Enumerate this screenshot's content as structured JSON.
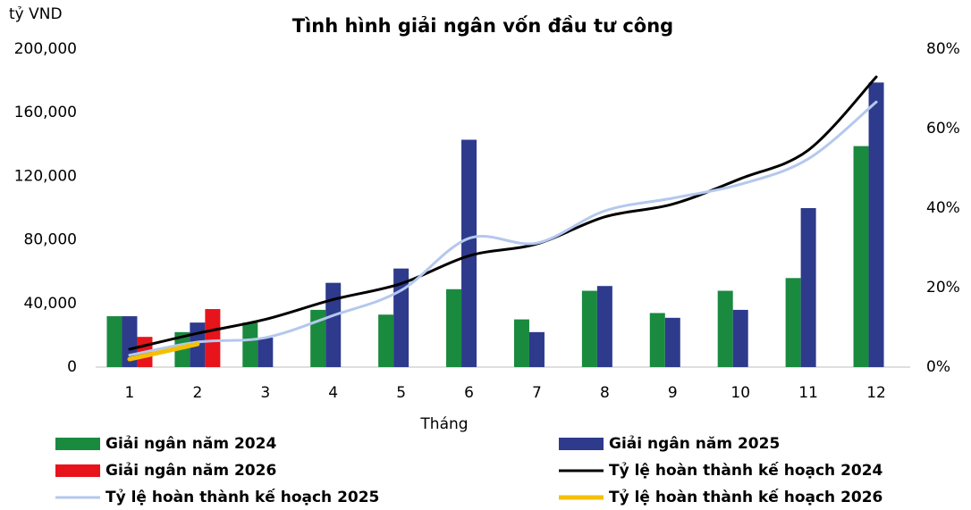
{
  "chart_data": {
    "type": "bar-line",
    "title": "Tình hình giải ngân vốn đầu tư công",
    "y_label": "tỷ VND",
    "x_label": "Tháng",
    "categories": [
      "1",
      "2",
      "3",
      "4",
      "5",
      "6",
      "7",
      "8",
      "9",
      "10",
      "11",
      "12"
    ],
    "ylim": [
      0,
      200000
    ],
    "yticks": [
      0,
      {
        "value": 40000,
        "label": "40,000"
      },
      {
        "value": 80000,
        "label": "80,000"
      },
      {
        "value": 120000,
        "label": "120,000"
      },
      {
        "value": 160000,
        "label": "160,000"
      },
      {
        "value": 200000,
        "label": "200,000"
      }
    ],
    "y2lim": [
      0,
      80
    ],
    "y2ticks": [
      {
        "value": 0,
        "label": "0%"
      },
      {
        "value": 20,
        "label": "20%"
      },
      {
        "value": 40,
        "label": "40%"
      },
      {
        "value": 60,
        "label": "60%"
      },
      {
        "value": 80,
        "label": "80%"
      }
    ],
    "grid": false,
    "series": [
      {
        "name": "Giải ngân năm 2024",
        "kind": "bar",
        "color": "#1a8a3e",
        "values": [
          32000,
          22000,
          28000,
          36000,
          33000,
          49000,
          30000,
          48000,
          34000,
          48000,
          56000,
          139000
        ]
      },
      {
        "name": "Giải ngân năm 2025",
        "kind": "bar",
        "color": "#2e3a8c",
        "values": [
          32000,
          28000,
          18500,
          53000,
          62000,
          143000,
          22000,
          51000,
          31000,
          36000,
          100000,
          179000
        ]
      },
      {
        "name": "Giải ngân năm 2026",
        "kind": "bar",
        "color": "#e8141b",
        "values": [
          19000,
          36500,
          null,
          null,
          null,
          null,
          null,
          null,
          null,
          null,
          null,
          null
        ]
      },
      {
        "name": "Tỷ lệ hoàn thành kế hoạch 2024",
        "kind": "line",
        "axis": "y2",
        "color": "#000000",
        "values": [
          4.5,
          8.5,
          12,
          17,
          21,
          28,
          31,
          37.8,
          41,
          47.4,
          54.6,
          73
        ]
      },
      {
        "name": "Tỷ lệ hoàn thành kế hoạch 2025",
        "kind": "line",
        "axis": "y2",
        "color": "#b4c8ee",
        "values": [
          3,
          6.3,
          7.4,
          13,
          19.3,
          32.4,
          31.2,
          39.3,
          42.5,
          46,
          52.4,
          66.7
        ]
      },
      {
        "name": "Tỷ lệ hoàn thành kế hoạch 2026",
        "kind": "line",
        "axis": "y2",
        "color": "#f5c000",
        "values": [
          2,
          5.8,
          null,
          null,
          null,
          null,
          null,
          null,
          null,
          null,
          null,
          null
        ]
      }
    ]
  }
}
